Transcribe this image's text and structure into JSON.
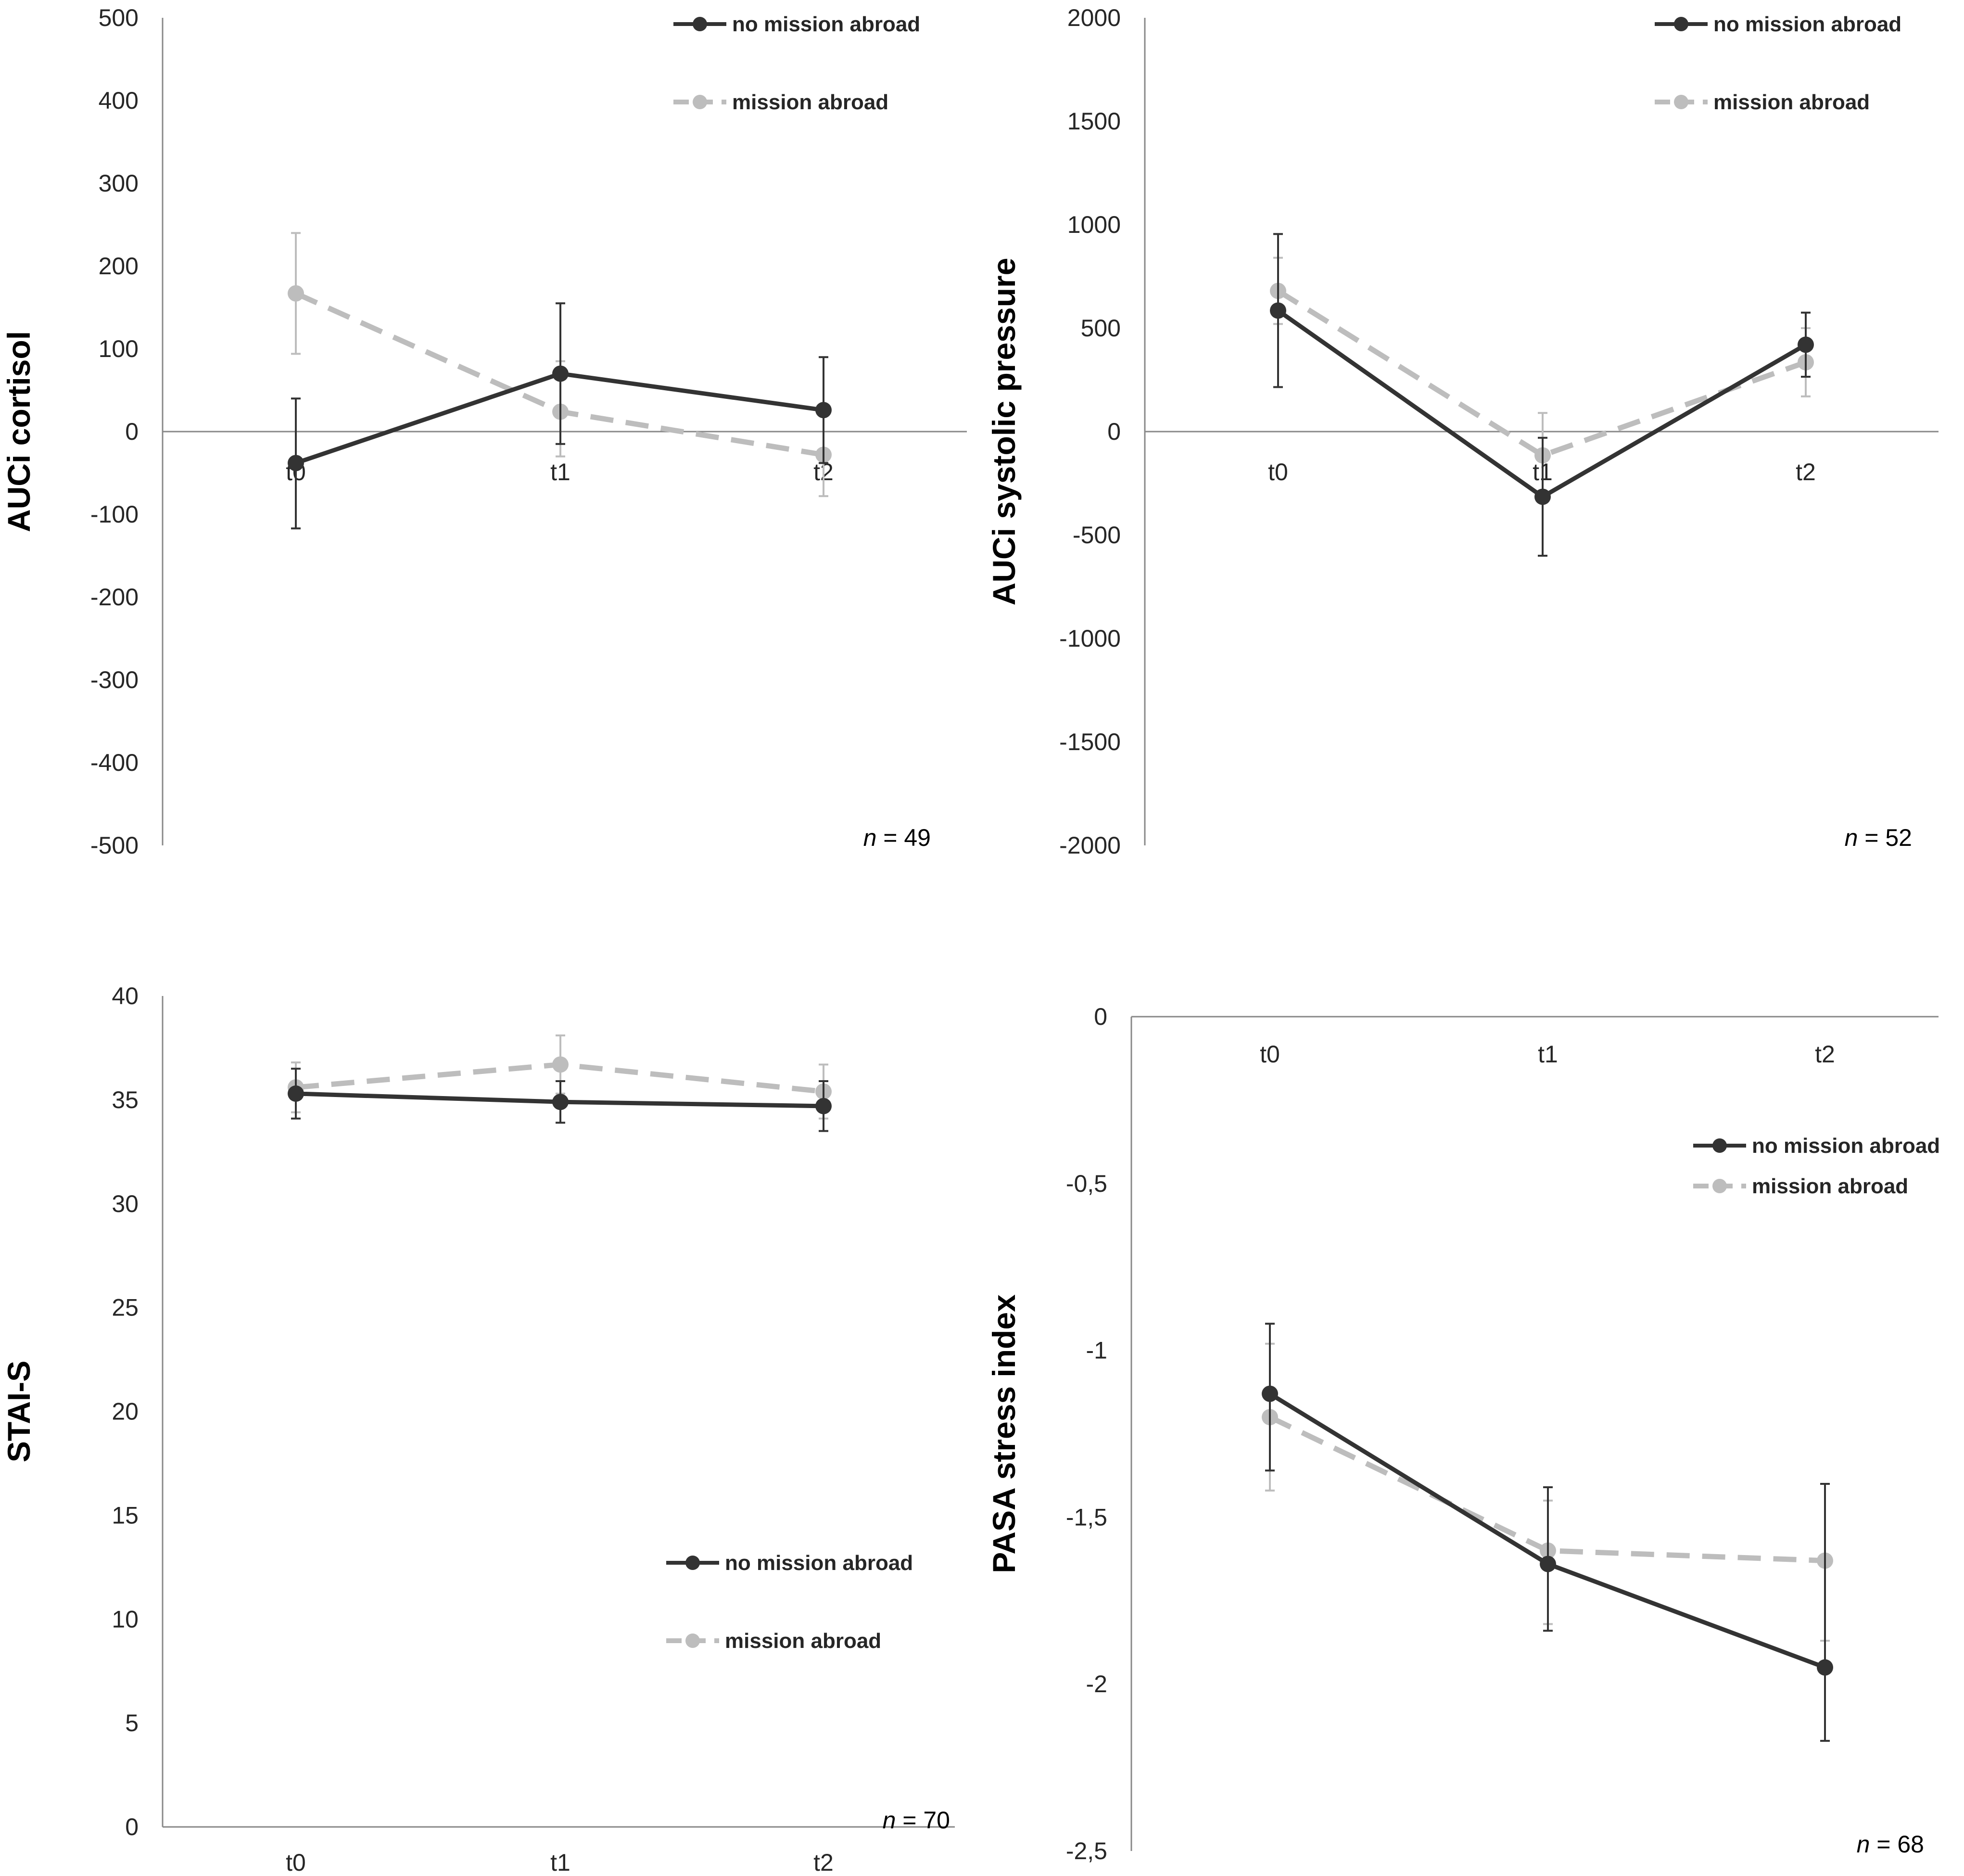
{
  "colors": {
    "no_mission": "#333333",
    "mission": "#bdbdbd",
    "axis": "#888888",
    "text": "#262626"
  },
  "chart_data": [
    {
      "type": "line",
      "ylabel": "AUCi cortisol",
      "categories": [
        "t0",
        "t1",
        "t2"
      ],
      "ylim": [
        -500,
        500
      ],
      "yticks": [
        500,
        400,
        300,
        200,
        100,
        0,
        -100,
        -200,
        -300,
        -400,
        -500
      ],
      "ytick_labels": [
        "500",
        "400",
        "300",
        "200",
        "100",
        "0",
        "-100",
        "-200",
        "-300",
        "-400",
        "-500"
      ],
      "category_axis": "zero-line",
      "legend_position": "top-right",
      "n_label": "n",
      "n_value": "= 49",
      "series": [
        {
          "name": "no mission abroad",
          "style": "solid",
          "values": [
            -38,
            70,
            26
          ],
          "err_upper": [
            40,
            155,
            90
          ],
          "err_lower": [
            -117,
            -15,
            -38
          ]
        },
        {
          "name": "mission abroad",
          "style": "dashed",
          "values": [
            167,
            24,
            -28
          ],
          "err_upper": [
            240,
            85,
            20
          ],
          "err_lower": [
            94,
            -30,
            -78
          ]
        }
      ]
    },
    {
      "type": "line",
      "ylabel": "AUCi systolic pressure",
      "categories": [
        "t0",
        "t1",
        "t2"
      ],
      "ylim": [
        -2000,
        2000
      ],
      "yticks": [
        2000,
        1500,
        1000,
        500,
        0,
        -500,
        -1000,
        -1500,
        -2000
      ],
      "ytick_labels": [
        "2000",
        "1500",
        "1000",
        "500",
        "0",
        "-500",
        "-1000",
        "-1500",
        "-2000"
      ],
      "category_axis": "zero-line",
      "legend_position": "top-right",
      "n_label": "n",
      "n_value": "= 52",
      "series": [
        {
          "name": "no mission abroad",
          "style": "solid",
          "values": [
            585,
            -315,
            420
          ],
          "err_upper": [
            955,
            -30,
            575
          ],
          "err_lower": [
            215,
            -600,
            265
          ]
        },
        {
          "name": "mission abroad",
          "style": "dashed",
          "values": [
            680,
            -115,
            335
          ],
          "err_upper": [
            840,
            90,
            500
          ],
          "err_lower": [
            520,
            -320,
            170
          ]
        }
      ]
    },
    {
      "type": "line",
      "ylabel": "STAI-S",
      "categories": [
        "t0",
        "t1",
        "t2"
      ],
      "ylim": [
        0,
        40
      ],
      "yticks": [
        40,
        35,
        30,
        25,
        20,
        15,
        10,
        5,
        0
      ],
      "ytick_labels": [
        "40",
        "35",
        "30",
        "25",
        "20",
        "15",
        "10",
        "5",
        "0"
      ],
      "category_axis": "bottom",
      "legend_position": "bottom-right",
      "n_label": "n",
      "n_value": "= 70",
      "series": [
        {
          "name": "no mission abroad",
          "style": "solid",
          "values": [
            35.3,
            34.9,
            34.7
          ],
          "err_upper": [
            36.5,
            35.9,
            35.9
          ],
          "err_lower": [
            34.1,
            33.9,
            33.5
          ]
        },
        {
          "name": "mission abroad",
          "style": "dashed",
          "values": [
            35.6,
            36.7,
            35.4
          ],
          "err_upper": [
            36.8,
            38.1,
            36.7
          ],
          "err_lower": [
            34.4,
            35.3,
            34.1
          ]
        }
      ]
    },
    {
      "type": "line",
      "ylabel": "PASA stress index",
      "categories": [
        "t0",
        "t1",
        "t2"
      ],
      "ylim": [
        -2.5,
        0
      ],
      "yticks": [
        0,
        -0.5,
        -1,
        -1.5,
        -2,
        -2.5
      ],
      "ytick_labels": [
        "0",
        "-0,5",
        "-1",
        "-1,5",
        "-2",
        "-2,5"
      ],
      "category_axis": "top",
      "legend_position": "right",
      "n_label": "n",
      "n_value": "= 68",
      "series": [
        {
          "name": "no mission abroad",
          "style": "solid",
          "values": [
            -1.13,
            -1.64,
            -1.95
          ],
          "err_upper": [
            -0.92,
            -1.41,
            -1.4
          ],
          "err_lower": [
            -1.36,
            -1.84,
            -2.17
          ]
        },
        {
          "name": "mission abroad",
          "style": "dashed",
          "values": [
            -1.2,
            -1.6,
            -1.63
          ],
          "err_upper": [
            -0.98,
            -1.45,
            -1.4
          ],
          "err_lower": [
            -1.42,
            -1.82,
            -1.87
          ]
        }
      ]
    }
  ]
}
